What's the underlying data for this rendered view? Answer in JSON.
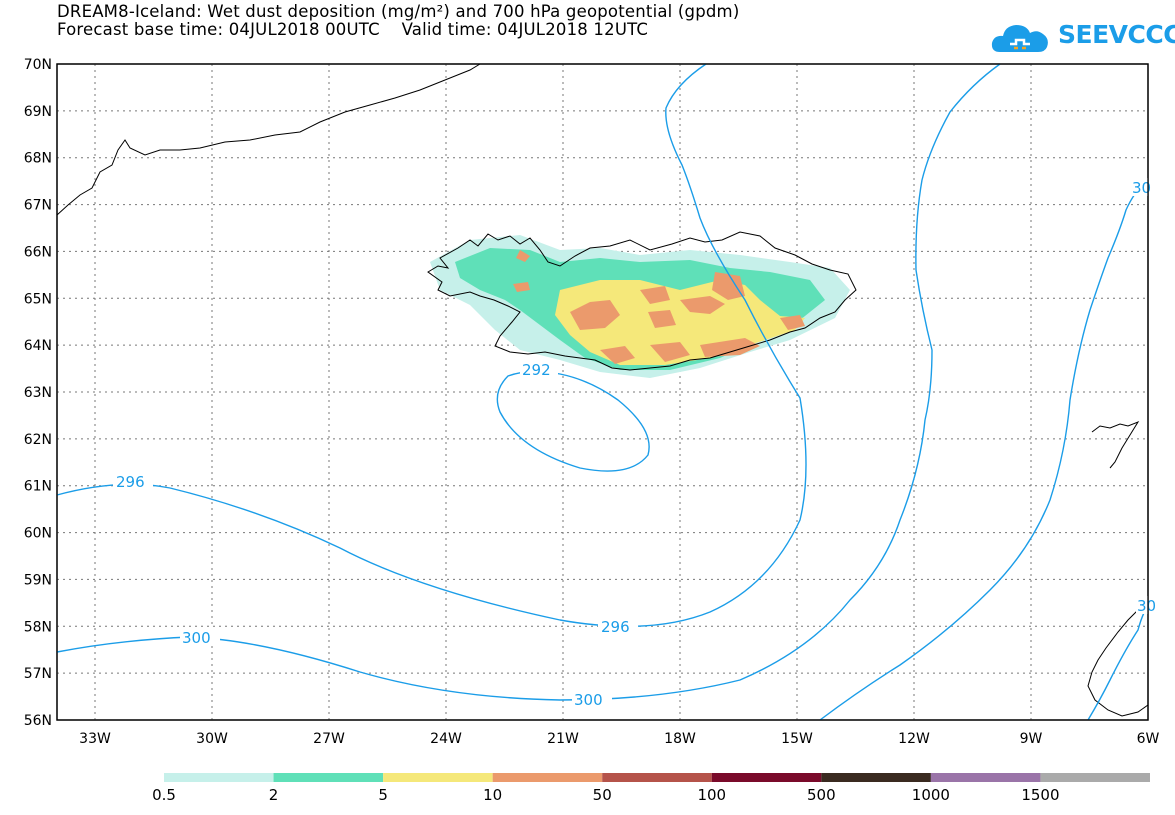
{
  "title": {
    "line1": "DREAM8-Iceland: Wet dust deposition (mg/m²) and 700 hPa geopotential (gpdm)",
    "line2": "Forecast base time: 04JUL2018 00UTC    Valid time: 04JUL2018 12UTC"
  },
  "logo": {
    "text": "SEEVCCC",
    "icon": "cloud-icon",
    "color": "#1b9de8"
  },
  "axes": {
    "lat_labels": [
      "56N",
      "57N",
      "58N",
      "59N",
      "60N",
      "61N",
      "62N",
      "63N",
      "64N",
      "65N",
      "66N",
      "67N",
      "68N",
      "69N",
      "70N"
    ],
    "lon_labels": [
      "33W",
      "30W",
      "27W",
      "24W",
      "21W",
      "18W",
      "15W",
      "12W",
      "9W",
      "6W"
    ]
  },
  "contours": {
    "color": "#1b9de8",
    "labels": [
      "292",
      "296",
      "296",
      "300",
      "300",
      "30",
      "30"
    ]
  },
  "legend": {
    "colors": [
      "#c6f0ea",
      "#5fe0b8",
      "#f5e87a",
      "#eb9a6c",
      "#b5534a",
      "#7a0a2a",
      "#3a2a20",
      "#9a74a8",
      "#aaaaaa"
    ],
    "labels": [
      "0.5",
      "2",
      "5",
      "10",
      "50",
      "100",
      "500",
      "1000",
      "1500"
    ]
  }
}
